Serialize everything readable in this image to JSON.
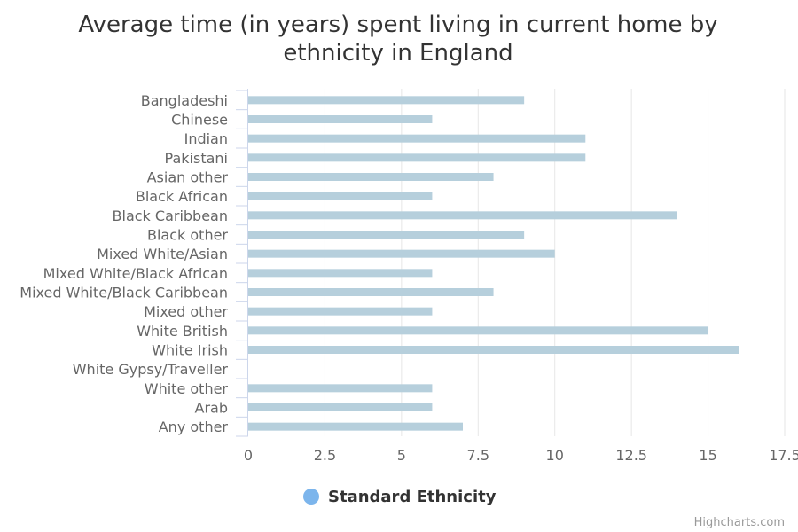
{
  "chart_data": {
    "type": "bar",
    "title": "Average time (in years) spent living in current home by ethnicity in England",
    "title_lines": [
      "Average time (in years) spent living in current home by",
      "ethnicity in England"
    ],
    "categories": [
      "Bangladeshi",
      "Chinese",
      "Indian",
      "Pakistani",
      "Asian other",
      "Black African",
      "Black Caribbean",
      "Black other",
      "Mixed White/Asian",
      "Mixed White/Black African",
      "Mixed White/Black Caribbean",
      "Mixed other",
      "White British",
      "White Irish",
      "White Gypsy/Traveller",
      "White other",
      "Arab",
      "Any other"
    ],
    "series": [
      {
        "name": "Standard Ethnicity",
        "values": [
          9,
          6,
          11,
          11,
          8,
          6,
          14,
          9,
          10,
          6,
          8,
          6,
          15,
          16,
          null,
          6,
          6,
          7
        ]
      }
    ],
    "x_ticks": [
      "0",
      "2.5",
      "5",
      "7.5",
      "10",
      "12.5",
      "15",
      "17.5"
    ],
    "xlim": [
      0,
      17.5
    ],
    "orientation": "horizontal",
    "grid": true,
    "legend_position": "bottom-center",
    "bar_color": "#b6cfdc",
    "legend_marker_color": "#7cb5ec",
    "credits": "Highcharts.com"
  }
}
